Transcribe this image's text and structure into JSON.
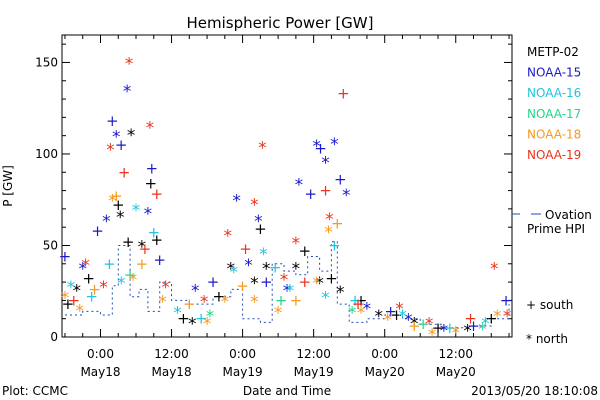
{
  "chart_data": {
    "type": "scatter",
    "title": "Hemispheric Power [GW]",
    "xlabel": "Date and Time",
    "ylabel": "P [GW]",
    "ylim": [
      0,
      165
    ],
    "yticks": [
      0,
      50,
      100,
      150
    ],
    "xlim": [
      "2013-05-17 17:30",
      "2013-05-20 21:30"
    ],
    "xticks": [
      {
        "time": "2013-05-18 00:00",
        "label1": "0:00",
        "label2": "May18"
      },
      {
        "time": "2013-05-18 12:00",
        "label1": "12:00",
        "label2": "May18"
      },
      {
        "time": "2013-05-19 00:00",
        "label1": "0:00",
        "label2": "May19"
      },
      {
        "time": "2013-05-19 12:00",
        "label1": "12:00",
        "label2": "May19"
      },
      {
        "time": "2013-05-20 00:00",
        "label1": "0:00",
        "label2": "May20"
      },
      {
        "time": "2013-05-20 12:00",
        "label1": "12:00",
        "label2": "May20"
      }
    ],
    "marker_legend": {
      "south": "+ south",
      "north": "* north"
    },
    "ovation_label": [
      "Ovation",
      "Prime HPI"
    ],
    "ovation_color": "#1a4fbf",
    "series": [
      {
        "name": "METP-02",
        "color": "#000000",
        "points": [
          {
            "t": "2013-05-17 18:30",
            "v": 18,
            "m": "+"
          },
          {
            "t": "2013-05-17 20:00",
            "v": 26,
            "m": "*"
          },
          {
            "t": "2013-05-17 22:00",
            "v": 32,
            "m": "+"
          },
          {
            "t": "2013-05-18 03:00",
            "v": 72,
            "m": "+"
          },
          {
            "t": "2013-05-18 03:20",
            "v": 66,
            "m": "*"
          },
          {
            "t": "2013-05-18 04:40",
            "v": 52,
            "m": "+"
          },
          {
            "t": "2013-05-18 05:10",
            "v": 111,
            "m": "*"
          },
          {
            "t": "2013-05-18 07:00",
            "v": 50,
            "m": "*"
          },
          {
            "t": "2013-05-18 08:30",
            "v": 84,
            "m": "+"
          },
          {
            "t": "2013-05-18 09:30",
            "v": 53,
            "m": "+"
          },
          {
            "t": "2013-05-18 14:00",
            "v": 10,
            "m": "+"
          },
          {
            "t": "2013-05-18 15:30",
            "v": 8,
            "m": "*"
          },
          {
            "t": "2013-05-18 20:00",
            "v": 22,
            "m": "+"
          },
          {
            "t": "2013-05-18 22:00",
            "v": 38,
            "m": "*"
          },
          {
            "t": "2013-05-19 02:00",
            "v": 30,
            "m": "*"
          },
          {
            "t": "2013-05-19 03:00",
            "v": 59,
            "m": "+"
          },
          {
            "t": "2013-05-19 04:00",
            "v": 38,
            "m": "*"
          },
          {
            "t": "2013-05-19 09:00",
            "v": 38,
            "m": "*"
          },
          {
            "t": "2013-05-19 10:30",
            "v": 47,
            "m": "+"
          },
          {
            "t": "2013-05-19 13:00",
            "v": 30,
            "m": "*"
          },
          {
            "t": "2013-05-19 15:00",
            "v": 32,
            "m": "+"
          },
          {
            "t": "2013-05-19 16:30",
            "v": 25,
            "m": "*"
          },
          {
            "t": "2013-05-19 20:00",
            "v": 20,
            "m": "+"
          },
          {
            "t": "2013-05-19 23:00",
            "v": 12,
            "m": "*"
          },
          {
            "t": "2013-05-20 02:00",
            "v": 12,
            "m": "+"
          },
          {
            "t": "2013-05-20 05:00",
            "v": 8,
            "m": "*"
          },
          {
            "t": "2013-05-20 09:00",
            "v": 5,
            "m": "+"
          },
          {
            "t": "2013-05-20 14:00",
            "v": 4,
            "m": "*"
          },
          {
            "t": "2013-05-20 18:00",
            "v": 10,
            "m": "+"
          }
        ]
      },
      {
        "name": "NOAA-15",
        "color": "#1a1ac8",
        "points": [
          {
            "t": "2013-05-17 18:00",
            "v": 44,
            "m": "+"
          },
          {
            "t": "2013-05-17 21:00",
            "v": 38,
            "m": "*"
          },
          {
            "t": "2013-05-17 23:30",
            "v": 58,
            "m": "+"
          },
          {
            "t": "2013-05-18 01:00",
            "v": 64,
            "m": "*"
          },
          {
            "t": "2013-05-18 02:00",
            "v": 118,
            "m": "+"
          },
          {
            "t": "2013-05-18 02:40",
            "v": 110,
            "m": "*"
          },
          {
            "t": "2013-05-18 03:30",
            "v": 105,
            "m": "+"
          },
          {
            "t": "2013-05-18 04:30",
            "v": 135,
            "m": "*"
          },
          {
            "t": "2013-05-18 08:00",
            "v": 68,
            "m": "*"
          },
          {
            "t": "2013-05-18 08:40",
            "v": 92,
            "m": "+"
          },
          {
            "t": "2013-05-18 10:00",
            "v": 42,
            "m": "+"
          },
          {
            "t": "2013-05-18 16:00",
            "v": 26,
            "m": "*"
          },
          {
            "t": "2013-05-18 19:00",
            "v": 30,
            "m": "+"
          },
          {
            "t": "2013-05-18 23:00",
            "v": 75,
            "m": "*"
          },
          {
            "t": "2013-05-19 01:00",
            "v": 40,
            "m": "*"
          },
          {
            "t": "2013-05-19 02:40",
            "v": 64,
            "m": "*"
          },
          {
            "t": "2013-05-19 04:00",
            "v": 30,
            "m": "+"
          },
          {
            "t": "2013-05-19 07:30",
            "v": 26,
            "m": "*"
          },
          {
            "t": "2013-05-19 09:30",
            "v": 84,
            "m": "*"
          },
          {
            "t": "2013-05-19 11:30",
            "v": 78,
            "m": "+"
          },
          {
            "t": "2013-05-19 12:30",
            "v": 105,
            "m": "*"
          },
          {
            "t": "2013-05-19 13:10",
            "v": 103,
            "m": "+"
          },
          {
            "t": "2013-05-19 14:00",
            "v": 96,
            "m": "*"
          },
          {
            "t": "2013-05-19 15:30",
            "v": 106,
            "m": "*"
          },
          {
            "t": "2013-05-19 16:30",
            "v": 86,
            "m": "+"
          },
          {
            "t": "2013-05-19 17:30",
            "v": 78,
            "m": "*"
          },
          {
            "t": "2013-05-19 21:00",
            "v": 16,
            "m": "*"
          },
          {
            "t": "2013-05-20 01:00",
            "v": 14,
            "m": "+"
          },
          {
            "t": "2013-05-20 04:00",
            "v": 10,
            "m": "*"
          },
          {
            "t": "2013-05-20 10:00",
            "v": 4,
            "m": "*"
          },
          {
            "t": "2013-05-20 15:00",
            "v": 6,
            "m": "+"
          },
          {
            "t": "2013-05-20 20:30",
            "v": 20,
            "m": "+"
          }
        ]
      },
      {
        "name": "NOAA-16",
        "color": "#22c4e0",
        "points": [
          {
            "t": "2013-05-17 19:00",
            "v": 28,
            "m": "*"
          },
          {
            "t": "2013-05-17 22:30",
            "v": 22,
            "m": "+"
          },
          {
            "t": "2013-05-18 01:30",
            "v": 40,
            "m": "+"
          },
          {
            "t": "2013-05-18 03:30",
            "v": 30,
            "m": "*"
          },
          {
            "t": "2013-05-18 06:00",
            "v": 70,
            "m": "*"
          },
          {
            "t": "2013-05-18 09:00",
            "v": 57,
            "m": "+"
          },
          {
            "t": "2013-05-18 13:00",
            "v": 14,
            "m": "*"
          },
          {
            "t": "2013-05-18 17:00",
            "v": 10,
            "m": "+"
          },
          {
            "t": "2013-05-18 22:30",
            "v": 36,
            "m": "*"
          },
          {
            "t": "2013-05-19 03:30",
            "v": 46,
            "m": "*"
          },
          {
            "t": "2013-05-19 05:30",
            "v": 38,
            "m": "+"
          },
          {
            "t": "2013-05-19 08:00",
            "v": 26,
            "m": "*"
          },
          {
            "t": "2013-05-19 14:00",
            "v": 22,
            "m": "*"
          },
          {
            "t": "2013-05-19 15:30",
            "v": 50,
            "m": "+"
          },
          {
            "t": "2013-05-19 19:00",
            "v": 20,
            "m": "+"
          },
          {
            "t": "2013-05-20 03:00",
            "v": 12,
            "m": "*"
          },
          {
            "t": "2013-05-20 11:00",
            "v": 5,
            "m": "+"
          },
          {
            "t": "2013-05-20 17:00",
            "v": 8,
            "m": "*"
          }
        ]
      },
      {
        "name": "NOAA-17",
        "color": "#22d68a",
        "points": [
          {
            "t": "2013-05-18 05:00",
            "v": 34,
            "m": "+"
          },
          {
            "t": "2013-05-18 18:30",
            "v": 12,
            "m": "*"
          },
          {
            "t": "2013-05-19 06:30",
            "v": 20,
            "m": "+"
          },
          {
            "t": "2013-05-19 18:30",
            "v": 14,
            "m": "*"
          },
          {
            "t": "2013-05-20 06:30",
            "v": 7,
            "m": "+"
          },
          {
            "t": "2013-05-20 16:30",
            "v": 5,
            "m": "*"
          }
        ]
      },
      {
        "name": "NOAA-18",
        "color": "#f59a23",
        "points": [
          {
            "t": "2013-05-17 18:00",
            "v": 22,
            "m": "*"
          },
          {
            "t": "2013-05-17 20:30",
            "v": 15,
            "m": "*"
          },
          {
            "t": "2013-05-17 23:00",
            "v": 26,
            "m": "+"
          },
          {
            "t": "2013-05-18 02:00",
            "v": 75,
            "m": "*"
          },
          {
            "t": "2013-05-18 02:40",
            "v": 77,
            "m": "+"
          },
          {
            "t": "2013-05-18 05:30",
            "v": 32,
            "m": "*"
          },
          {
            "t": "2013-05-18 07:00",
            "v": 40,
            "m": "+"
          },
          {
            "t": "2013-05-18 10:30",
            "v": 20,
            "m": "*"
          },
          {
            "t": "2013-05-18 15:00",
            "v": 18,
            "m": "+"
          },
          {
            "t": "2013-05-18 18:00",
            "v": 8,
            "m": "*"
          },
          {
            "t": "2013-05-18 21:00",
            "v": 20,
            "m": "*"
          },
          {
            "t": "2013-05-19 00:00",
            "v": 28,
            "m": "+"
          },
          {
            "t": "2013-05-19 02:00",
            "v": 20,
            "m": "*"
          },
          {
            "t": "2013-05-19 06:00",
            "v": 14,
            "m": "*"
          },
          {
            "t": "2013-05-19 09:00",
            "v": 20,
            "m": "+"
          },
          {
            "t": "2013-05-19 12:30",
            "v": 30,
            "m": "*"
          },
          {
            "t": "2013-05-19 14:30",
            "v": 58,
            "m": "*"
          },
          {
            "t": "2013-05-19 16:00",
            "v": 62,
            "m": "+"
          },
          {
            "t": "2013-05-19 20:00",
            "v": 14,
            "m": "*"
          },
          {
            "t": "2013-05-20 00:30",
            "v": 10,
            "m": "*"
          },
          {
            "t": "2013-05-20 05:00",
            "v": 6,
            "m": "+"
          },
          {
            "t": "2013-05-20 08:00",
            "v": 2,
            "m": "*"
          },
          {
            "t": "2013-05-20 12:00",
            "v": 3,
            "m": "*"
          },
          {
            "t": "2013-05-20 19:00",
            "v": 12,
            "m": "*"
          }
        ]
      },
      {
        "name": "NOAA-19",
        "color": "#e8351c",
        "points": [
          {
            "t": "2013-05-17 19:30",
            "v": 20,
            "m": "+"
          },
          {
            "t": "2013-05-17 21:30",
            "v": 40,
            "m": "*"
          },
          {
            "t": "2013-05-18 00:30",
            "v": 28,
            "m": "*"
          },
          {
            "t": "2013-05-18 01:40",
            "v": 103,
            "m": "*"
          },
          {
            "t": "2013-05-18 04:00",
            "v": 90,
            "m": "+"
          },
          {
            "t": "2013-05-18 04:50",
            "v": 150,
            "m": "*"
          },
          {
            "t": "2013-05-18 07:30",
            "v": 48,
            "m": "+"
          },
          {
            "t": "2013-05-18 08:20",
            "v": 115,
            "m": "*"
          },
          {
            "t": "2013-05-18 09:30",
            "v": 78,
            "m": "+"
          },
          {
            "t": "2013-05-18 11:00",
            "v": 28,
            "m": "*"
          },
          {
            "t": "2013-05-18 17:30",
            "v": 20,
            "m": "*"
          },
          {
            "t": "2013-05-18 21:30",
            "v": 56,
            "m": "*"
          },
          {
            "t": "2013-05-19 00:30",
            "v": 48,
            "m": "+"
          },
          {
            "t": "2013-05-19 02:00",
            "v": 73,
            "m": "*"
          },
          {
            "t": "2013-05-19 03:20",
            "v": 104,
            "m": "*"
          },
          {
            "t": "2013-05-19 07:00",
            "v": 32,
            "m": "*"
          },
          {
            "t": "2013-05-19 09:00",
            "v": 52,
            "m": "*"
          },
          {
            "t": "2013-05-19 10:30",
            "v": 30,
            "m": "+"
          },
          {
            "t": "2013-05-19 14:00",
            "v": 80,
            "m": "+"
          },
          {
            "t": "2013-05-19 14:40",
            "v": 65,
            "m": "*"
          },
          {
            "t": "2013-05-19 17:00",
            "v": 133,
            "m": "+"
          },
          {
            "t": "2013-05-19 19:30",
            "v": 18,
            "m": "+"
          },
          {
            "t": "2013-05-20 02:30",
            "v": 16,
            "m": "*"
          },
          {
            "t": "2013-05-20 07:30",
            "v": 8,
            "m": "*"
          },
          {
            "t": "2013-05-20 14:30",
            "v": 10,
            "m": "+"
          },
          {
            "t": "2013-05-20 18:30",
            "v": 38,
            "m": "*"
          },
          {
            "t": "2013-05-20 20:40",
            "v": 12,
            "m": "*"
          }
        ]
      }
    ],
    "ovation": [
      {
        "t": "2013-05-17 18:00",
        "v": 12
      },
      {
        "t": "2013-05-17 21:00",
        "v": 14
      },
      {
        "t": "2013-05-18 00:00",
        "v": 12
      },
      {
        "t": "2013-05-18 02:00",
        "v": 28
      },
      {
        "t": "2013-05-18 03:00",
        "v": 50
      },
      {
        "t": "2013-05-18 05:00",
        "v": 22
      },
      {
        "t": "2013-05-18 06:30",
        "v": 26
      },
      {
        "t": "2013-05-18 08:00",
        "v": 14
      },
      {
        "t": "2013-05-18 10:00",
        "v": 30
      },
      {
        "t": "2013-05-18 12:00",
        "v": 20
      },
      {
        "t": "2013-05-18 15:00",
        "v": 18
      },
      {
        "t": "2013-05-18 19:00",
        "v": 22
      },
      {
        "t": "2013-05-18 22:00",
        "v": 26
      },
      {
        "t": "2013-05-19 00:00",
        "v": 10
      },
      {
        "t": "2013-05-19 03:00",
        "v": 8
      },
      {
        "t": "2013-05-19 05:00",
        "v": 40
      },
      {
        "t": "2013-05-19 07:00",
        "v": 36
      },
      {
        "t": "2013-05-19 09:00",
        "v": 34
      },
      {
        "t": "2013-05-19 11:00",
        "v": 44
      },
      {
        "t": "2013-05-19 13:00",
        "v": 36
      },
      {
        "t": "2013-05-19 15:00",
        "v": 52
      },
      {
        "t": "2013-05-19 16:00",
        "v": 18
      },
      {
        "t": "2013-05-19 18:00",
        "v": 8
      },
      {
        "t": "2013-05-19 21:00",
        "v": 10
      },
      {
        "t": "2013-05-20 00:00",
        "v": 12
      },
      {
        "t": "2013-05-20 03:00",
        "v": 10
      },
      {
        "t": "2013-05-20 06:00",
        "v": 7
      },
      {
        "t": "2013-05-20 10:00",
        "v": 5
      },
      {
        "t": "2013-05-20 14:00",
        "v": 6
      },
      {
        "t": "2013-05-20 18:00",
        "v": 10
      },
      {
        "t": "2013-05-20 21:00",
        "v": 18
      }
    ]
  },
  "footer": {
    "plot_credit": "Plot: CCMC",
    "timestamp": "2013/05/20 18:10:08"
  }
}
